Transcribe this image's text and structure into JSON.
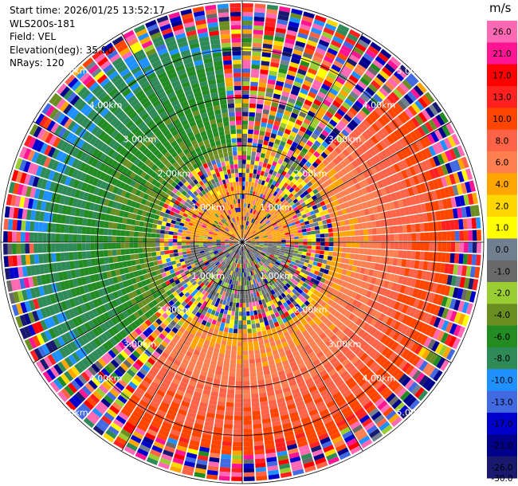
{
  "header": {
    "start_time": "Start time: 2026/01/25 13:52:17",
    "site": "WLS200s-181",
    "field": "Field: VEL",
    "elevation": "Elevation(deg): 35.00",
    "nrays": "NRays: 120"
  },
  "chart_data": {
    "type": "heatmap",
    "projection": "polar-ppi",
    "field": "VEL",
    "units": "m/s",
    "elevation_deg": 35.0,
    "n_rays": 120,
    "range_rings_km": [
      1.0,
      2.0,
      3.0,
      4.0,
      5.0
    ],
    "ring_labels": [
      "1.00km",
      "2.00km",
      "3.00km",
      "4.00km",
      "5.00km"
    ],
    "max_range_km": 5.0,
    "grid": true,
    "spokes_deg": [
      0,
      30,
      60,
      90,
      120,
      150,
      180,
      210,
      240,
      270,
      300,
      330
    ],
    "pattern": {
      "near_field_approaching": {
        "azimuth_deg": [
          270,
          90
        ],
        "value_ms": 3.5
      },
      "near_field_receding": {
        "azimuth_deg": [
          90,
          270
        ],
        "value_ms": -1.5
      },
      "positive_sector": {
        "azimuth_deg": [
          45,
          215
        ],
        "range_km": [
          1.9,
          4.4
        ],
        "value_ms": 7.5
      },
      "negative_sector": {
        "azimuth_deg": [
          230,
          355
        ],
        "range_km": [
          1.6,
          4.6
        ],
        "value_ms": -7.0
      },
      "noise_beyond_km": 4.3
    },
    "colorbar": {
      "unit": "m/s",
      "ticks": [
        "26.0",
        "21.0",
        "17.0",
        "13.0",
        "10.0",
        "8.0",
        "6.0",
        "4.0",
        "2.0",
        "1.0",
        "0.0",
        "-1.0",
        "-2.0",
        "-4.0",
        "-6.0",
        "-8.0",
        "-10.0",
        "-13.0",
        "-17.0",
        "-21.0",
        "-26.0",
        "-30.0"
      ],
      "colors": [
        "#ff69b4",
        "#ff1493",
        "#ff0000",
        "#ff2020",
        "#ff4500",
        "#ff6347",
        "#ff7f50",
        "#ffa500",
        "#ffd700",
        "#ffff00",
        "#708090",
        "#696969",
        "#9acd32",
        "#6b8e23",
        "#228b22",
        "#2e8b57",
        "#1e90ff",
        "#4169e1",
        "#0000cd",
        "#00008b",
        "#191970"
      ]
    }
  }
}
